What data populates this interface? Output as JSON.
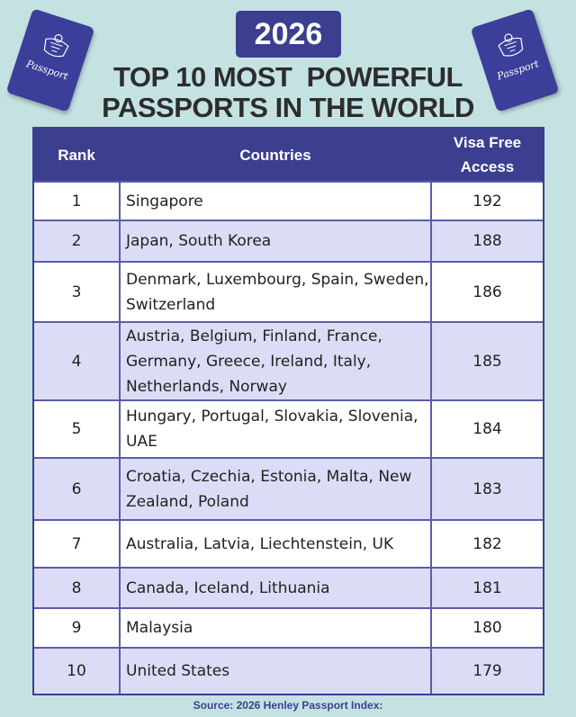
{
  "badge": {
    "year": "2026"
  },
  "title": {
    "line1": "TOP 10 MOST  POWERFUL",
    "line2": "PASSPORTS IN THE WORLD"
  },
  "passport": {
    "label": "Passport",
    "icon": "coat-of-arms-icon"
  },
  "table": {
    "headers": {
      "rank": "Rank",
      "countries": "Countries",
      "visa_line1": "Visa Free",
      "visa_line2": "Access"
    },
    "rows": [
      {
        "rank": "1",
        "countries": "Singapore",
        "visa": "192"
      },
      {
        "rank": "2",
        "countries": "Japan, South Korea",
        "visa": "188"
      },
      {
        "rank": "3",
        "countries": "Denmark, Luxembourg, Spain, Sweden, Switzerland",
        "visa": "186"
      },
      {
        "rank": "4",
        "countries": "Austria, Belgium, Finland, France, Germany, Greece, Ireland, Italy, Netherlands, Norway",
        "visa": "185"
      },
      {
        "rank": "5",
        "countries": "Hungary, Portugal, Slovakia, Slovenia, UAE",
        "visa": "184"
      },
      {
        "rank": "6",
        "countries": "Croatia, Czechia, Estonia, Malta, New Zealand, Poland",
        "visa": "183"
      },
      {
        "rank": "7",
        "countries": "Australia, Latvia, Liechtenstein, UK",
        "visa": "182"
      },
      {
        "rank": "8",
        "countries": "Canada, Iceland, Lithuania",
        "visa": "181"
      },
      {
        "rank": "9",
        "countries": "Malaysia",
        "visa": "180"
      },
      {
        "rank": "10",
        "countries": "United States",
        "visa": "179"
      }
    ]
  },
  "source": "Source: 2026 Henley Passport Index:",
  "colors": {
    "background": "#c5e2e3",
    "accent": "#3c3f8f",
    "row_alt": "#dcdcf7"
  }
}
